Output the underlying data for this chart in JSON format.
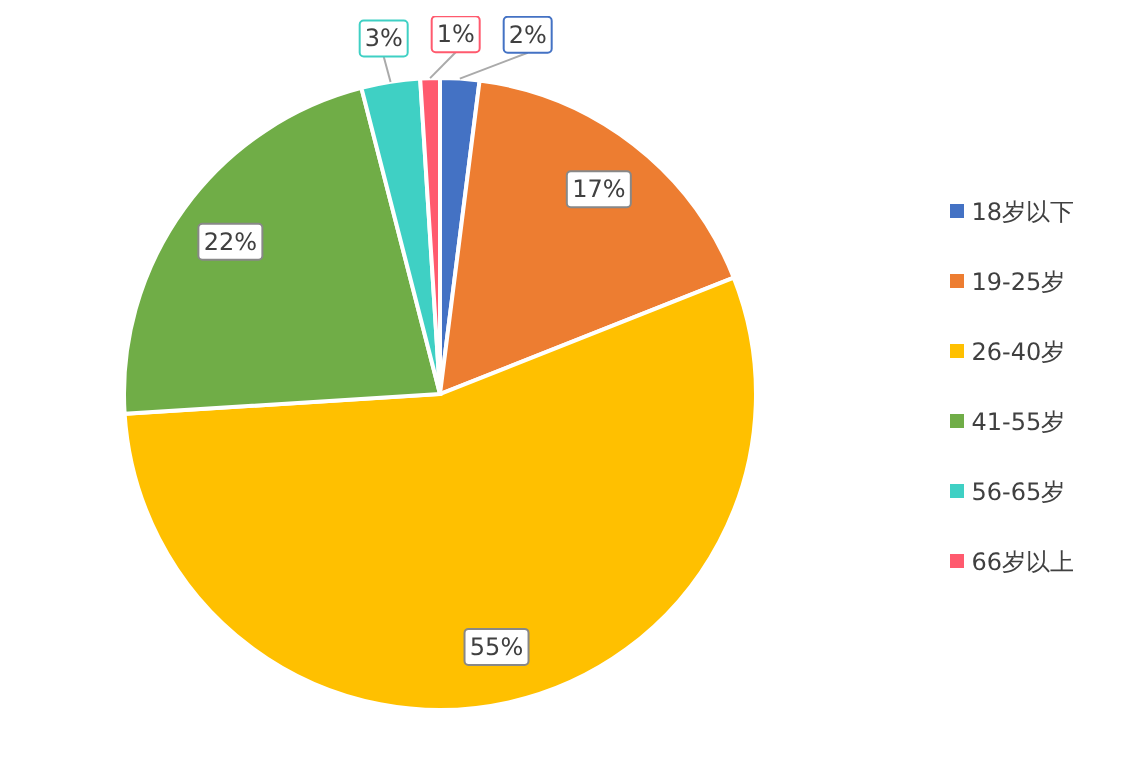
{
  "chart_data": {
    "type": "pie",
    "categories": [
      "18岁以下",
      "19-25岁",
      "26-40岁",
      "41-55岁",
      "56-65岁",
      "66岁以上"
    ],
    "values": [
      2,
      17,
      55,
      22,
      3,
      1
    ],
    "colors": [
      "#4472c4",
      "#ed7d31",
      "#ffc000",
      "#70ad47",
      "#3fd0c4",
      "#ff5a6e"
    ],
    "value_labels": [
      "2%",
      "17%",
      "55%",
      "22%",
      "3%",
      "1%"
    ],
    "legend": "right"
  }
}
